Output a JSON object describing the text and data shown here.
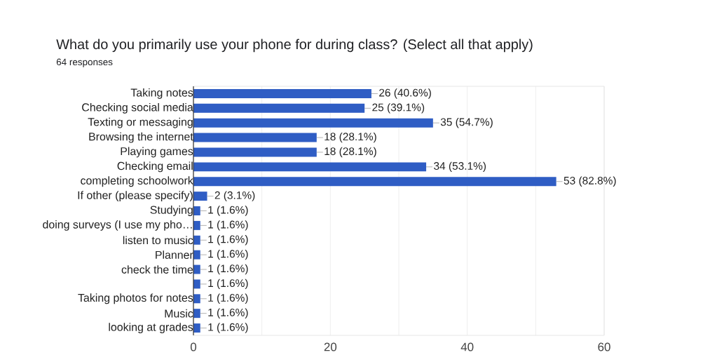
{
  "chart_data": {
    "type": "bar",
    "orientation": "horizontal",
    "title": "What do you primarily use your phone for during class? (Select all that apply)",
    "subtitle": "64 responses",
    "categories": [
      "Taking notes",
      "Checking social media",
      "Texting or messaging",
      "Browsing the internet",
      "Playing games",
      "Checking email",
      "completing schoolwork",
      "If other (please specify)",
      "Studying",
      "doing surveys (I use my pho…",
      "listen to music",
      "Planner",
      "check the time",
      null,
      "Taking photos for notes",
      "Music",
      "looking at grades"
    ],
    "values": [
      26,
      25,
      35,
      18,
      18,
      34,
      53,
      2,
      1,
      1,
      1,
      1,
      1,
      1,
      1,
      1,
      1
    ],
    "value_labels": [
      "26 (40.6%)",
      "25 (39.1%)",
      "35 (54.7%)",
      "18 (28.1%)",
      "18 (28.1%)",
      "34 (53.1%)",
      "53 (82.8%)",
      "2 (3.1%)",
      "1 (1.6%)",
      "1 (1.6%)",
      "1 (1.6%)",
      "1 (1.6%)",
      "1 (1.6%)",
      "1 (1.6%)",
      "1 (1.6%)",
      "1 (1.6%)",
      "1 (1.6%)"
    ],
    "color": "#2f5dc4",
    "xlim": [
      0,
      60
    ],
    "xticks": [
      0,
      {
        "value": 10,
        "label": null
      },
      20,
      {
        "value": 30,
        "label": null
      },
      40,
      {
        "value": 50,
        "label": null
      },
      60
    ],
    "grid": "x"
  }
}
